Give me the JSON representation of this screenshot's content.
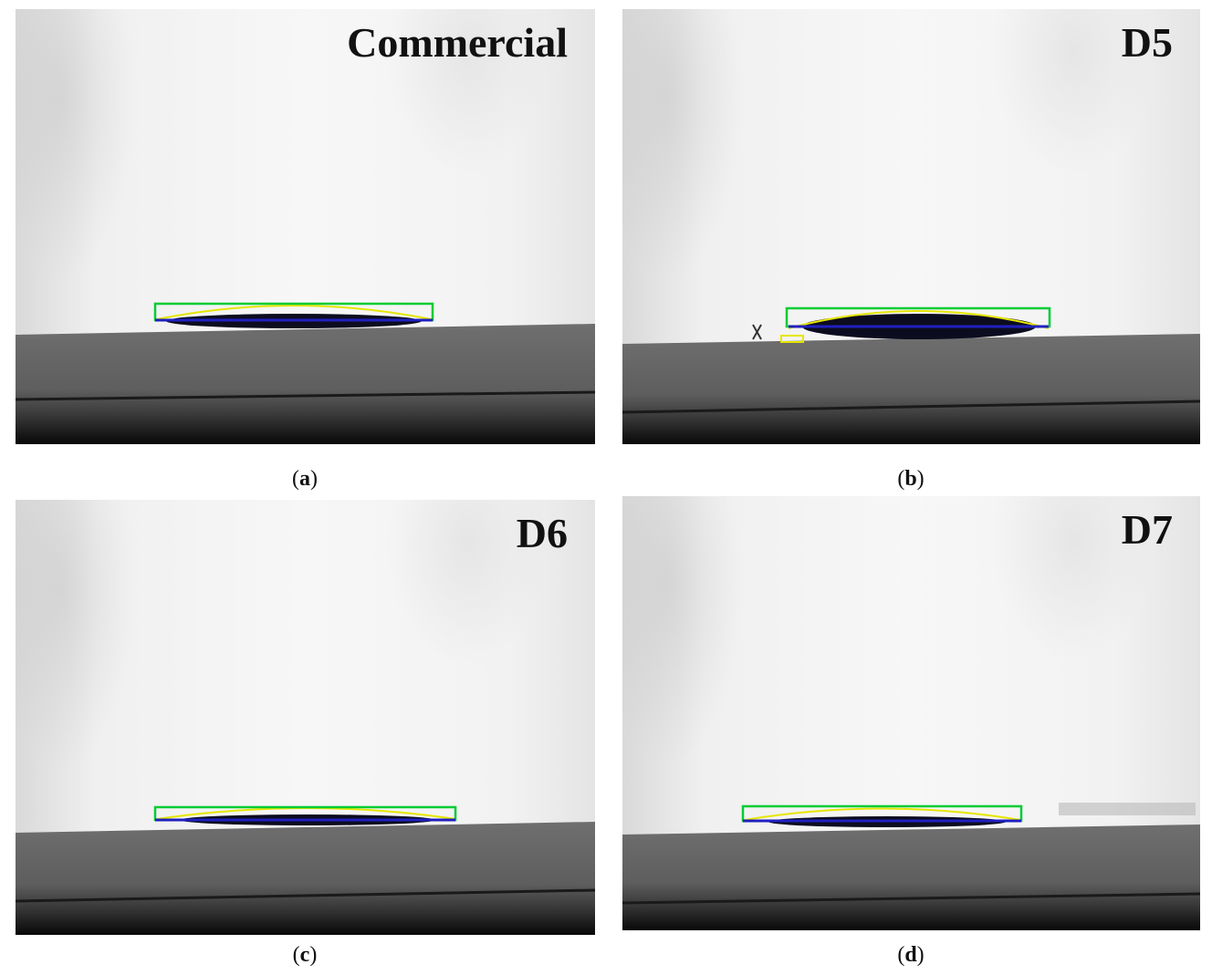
{
  "panels": [
    {
      "id": "a",
      "label": "Commercial",
      "caption_letter": "a"
    },
    {
      "id": "b",
      "label": "D5",
      "caption_letter": "b"
    },
    {
      "id": "c",
      "label": "D6",
      "caption_letter": "c"
    },
    {
      "id": "d",
      "label": "D7",
      "caption_letter": "d"
    }
  ],
  "colors": {
    "background": "#f4f4f4",
    "substrate": "#6a6a6a",
    "substrate_dark": "#0d0d0d",
    "droplet": "#0b0b1e",
    "baseline_box": "#00cc33",
    "profile_fit": "#e6e600",
    "baseline": "#2020c0"
  }
}
